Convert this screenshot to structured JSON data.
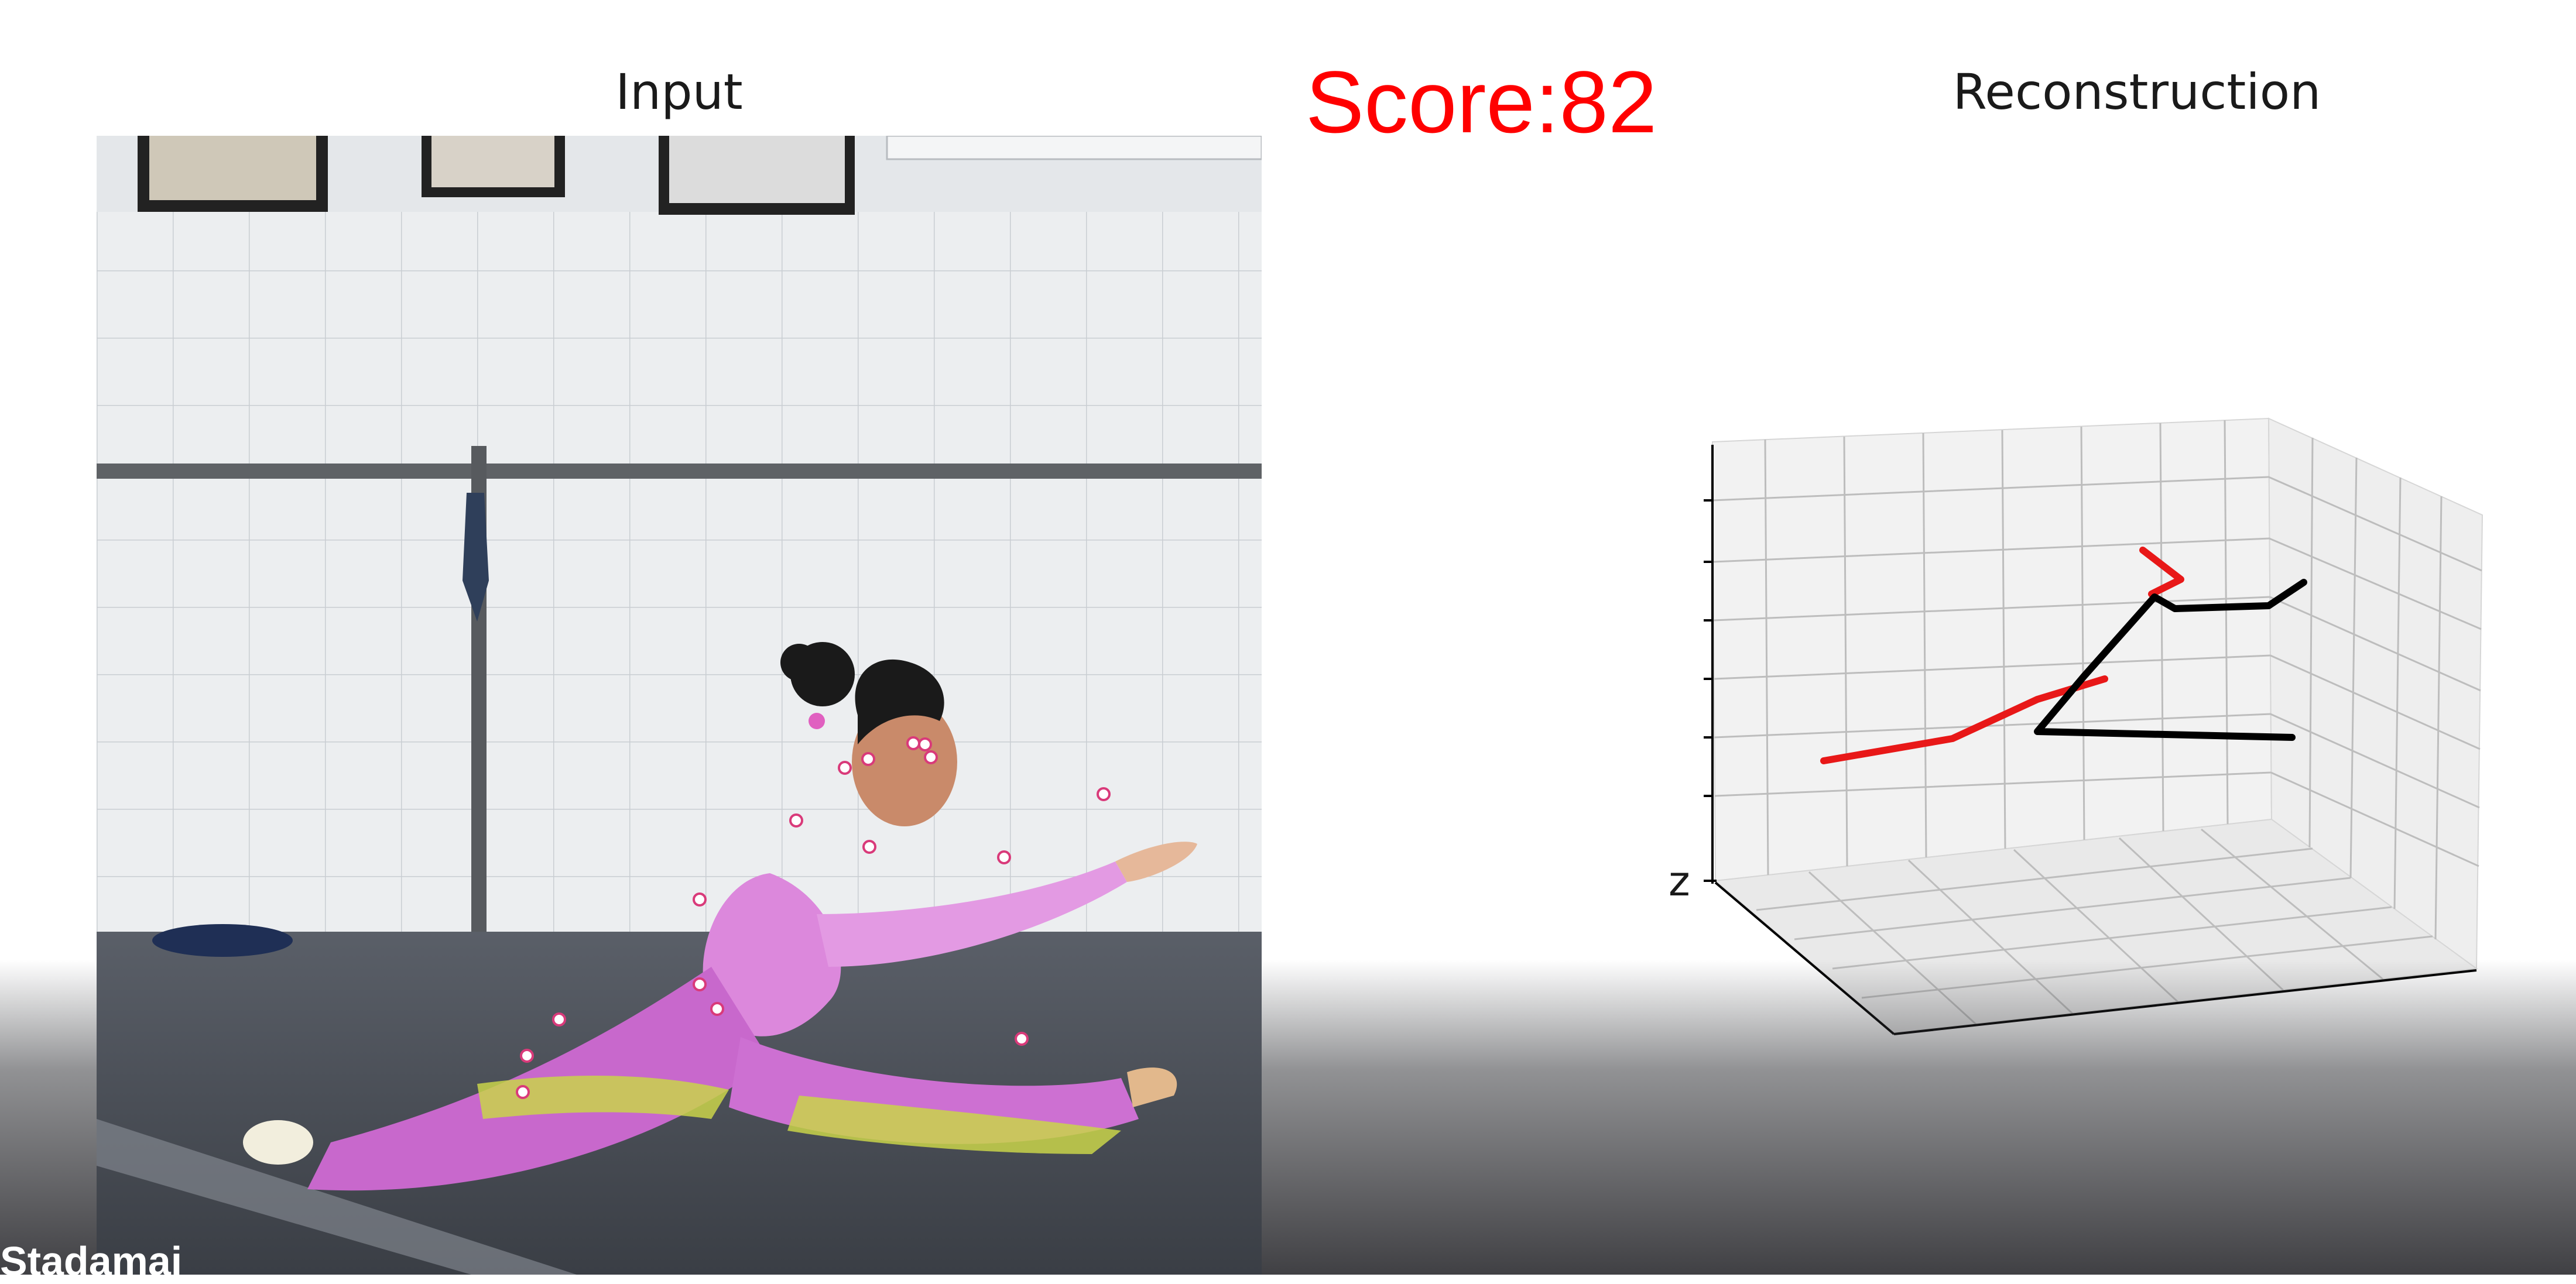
{
  "panels": {
    "input_title": "Input",
    "reconstruction_title": "Reconstruction"
  },
  "score": {
    "text": "Score:82",
    "color": "#ff0000"
  },
  "reconstruction": {
    "axis_label": "z"
  },
  "caption": {
    "fragment": "Stadamai"
  },
  "colors": {
    "skeleton_left": "#e81818",
    "skeleton_right": "#000000",
    "keypoint": "#ffffff",
    "keypoint_ring": "#d93a7a",
    "costume": "#d86ad8",
    "floor": "#454a52",
    "wall": "#eef0f2"
  }
}
